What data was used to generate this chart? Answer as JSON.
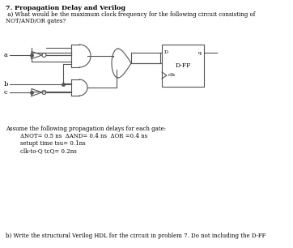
{
  "title": "7. Propagation Delay and Verilog",
  "subtitle_a": " a) What would be the maximum clock frequency for the following circuit consisting of",
  "subtitle_b": "NOT/AND/OR gates?",
  "assumption_text": "Assume the following propagation delays for each gate:",
  "delay_line1": "ΔNOT= 0.5 ns  ΔAND= 0.4 ns  ΔOR =0.4 ns",
  "delay_line2": "setupt time tsu= 0.1ns",
  "delay_line3": "clk-to-Q tcQ= 0.2ns",
  "part_b": "b) Write the structural Verilog HDL for the circuit in problem 7. Do not including the D-FF",
  "bg_color": "#ffffff",
  "text_color": "#000000",
  "gate_color": "#555555",
  "wire_color": "#555555",
  "label_a": "a",
  "label_b": "b",
  "label_c": "c",
  "dff_label": "D-FF",
  "dff_d": "D",
  "dff_q": "q",
  "dff_clk": "clk",
  "dff_d_small": "D",
  "dff_q_small": "q"
}
